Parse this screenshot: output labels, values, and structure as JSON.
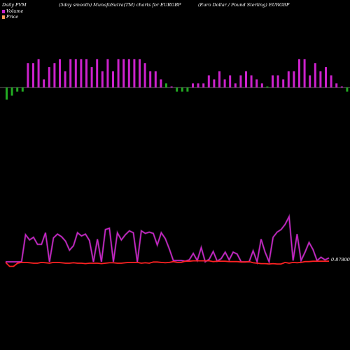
{
  "header": {
    "left": "Daily PVM",
    "mid": "(5day smooth) MunafaSutra(TM) charts for EURGBP",
    "right": "(Euro Dollar / Pound Sterling) EURGBP"
  },
  "legend": [
    {
      "label": "Volume",
      "color": "#cc22cc"
    },
    {
      "label": "Price",
      "color": "#ff9955"
    }
  ],
  "colors": {
    "volume_up": "#cc22cc",
    "volume_down": "#22aa22",
    "price_line": "#ff2222",
    "volume_line": "#cc22cc",
    "baseline": "#888888"
  },
  "chart_data": [
    {
      "type": "bar",
      "name": "volume",
      "values": [
        -3,
        -2,
        -1,
        -1,
        6,
        6,
        7,
        2,
        5,
        6,
        7,
        4,
        7,
        7,
        7,
        7,
        5,
        7,
        4,
        7,
        4,
        7,
        7,
        7,
        7,
        7,
        6,
        4,
        4,
        2,
        1,
        0,
        -1,
        -1,
        -1,
        1,
        1,
        1,
        3,
        2,
        4,
        2,
        3,
        1,
        3,
        4,
        3,
        2,
        1,
        0,
        3,
        3,
        2,
        4,
        4,
        7,
        7,
        3,
        6,
        4,
        5,
        3,
        1,
        0,
        -1,
        -1
      ],
      "direction": [
        "d",
        "d",
        "d",
        "d",
        "u",
        "u",
        "u",
        "u",
        "u",
        "u",
        "u",
        "u",
        "u",
        "u",
        "u",
        "u",
        "u",
        "u",
        "u",
        "u",
        "u",
        "u",
        "u",
        "u",
        "u",
        "u",
        "u",
        "u",
        "u",
        "u",
        "d",
        "u",
        "u",
        "d",
        "u",
        "u",
        "u",
        "u",
        "u",
        "u",
        "u",
        "u",
        "u",
        "u",
        "u",
        "u",
        "u",
        "u",
        "u",
        "d",
        "u",
        "u",
        "u",
        "u",
        "u",
        "u",
        "u",
        "u",
        "u",
        "u",
        "u",
        "u",
        "u",
        "u",
        "u",
        "d"
      ]
    },
    {
      "type": "line",
      "name": "volume_smooth",
      "values": [
        0,
        0,
        0,
        0,
        0,
        0.42,
        0.34,
        0.38,
        0.27,
        0.27,
        0.45,
        0,
        0.37,
        0.43,
        0.39,
        0.32,
        0.18,
        0.25,
        0.45,
        0.4,
        0.43,
        0.33,
        0,
        0.35,
        0,
        0.5,
        0.52,
        0,
        0.45,
        0.34,
        0.42,
        0.48,
        0.45,
        0,
        0.48,
        0.44,
        0.46,
        0.44,
        0.26,
        0.45,
        0.36,
        0.2,
        0.02,
        0.02,
        0.02,
        0.01,
        0.03,
        0.13,
        0.02,
        0.22,
        0,
        0.04,
        0.16,
        0.01,
        0.05,
        0.15,
        0.03,
        0.15,
        0.12,
        0,
        0,
        0,
        0.17,
        0,
        0.35,
        0.15,
        0,
        0.38,
        0.46,
        0.5,
        0.58,
        0.7,
        0.02,
        0.43,
        0.02,
        0.15,
        0.3,
        0.19,
        0.02,
        0.07,
        0.03,
        0.06
      ],
      "xlim": [
        0,
        82
      ],
      "ylim": [
        0,
        1
      ]
    },
    {
      "type": "line",
      "name": "price",
      "values": [
        0.8774,
        0.8764,
        0.8764,
        0.8772,
        0.8774,
        0.8774,
        0.8773,
        0.8772,
        0.8772,
        0.8774,
        0.8773,
        0.8772,
        0.8774,
        0.8774,
        0.8773,
        0.8772,
        0.8772,
        0.8773,
        0.8772,
        0.8772,
        0.8771,
        0.8772,
        0.8772,
        0.8772,
        0.8771,
        0.8772,
        0.8773,
        0.8773,
        0.8772,
        0.8772,
        0.8773,
        0.8774,
        0.8774,
        0.8774,
        0.8772,
        0.8773,
        0.8772,
        0.8775,
        0.8775,
        0.8774,
        0.8773,
        0.8774,
        0.8776,
        0.8774,
        0.8774,
        0.8777,
        0.8777,
        0.8778,
        0.8778,
        0.8778,
        0.8778,
        0.8778,
        0.8776,
        0.8777,
        0.8777,
        0.8777,
        0.8776,
        0.8776,
        0.8776,
        0.8775,
        0.8775,
        0.8776,
        0.8773,
        0.8772,
        0.8771,
        0.8771,
        0.877,
        0.8771,
        0.877,
        0.877,
        0.8774,
        0.8772,
        0.8774,
        0.8773,
        0.8774,
        0.8776,
        0.8776,
        0.8777,
        0.8777,
        0.8777,
        0.8777,
        0.8777
      ],
      "reference_label": "0.87800",
      "reference_value": 0.878
    }
  ]
}
